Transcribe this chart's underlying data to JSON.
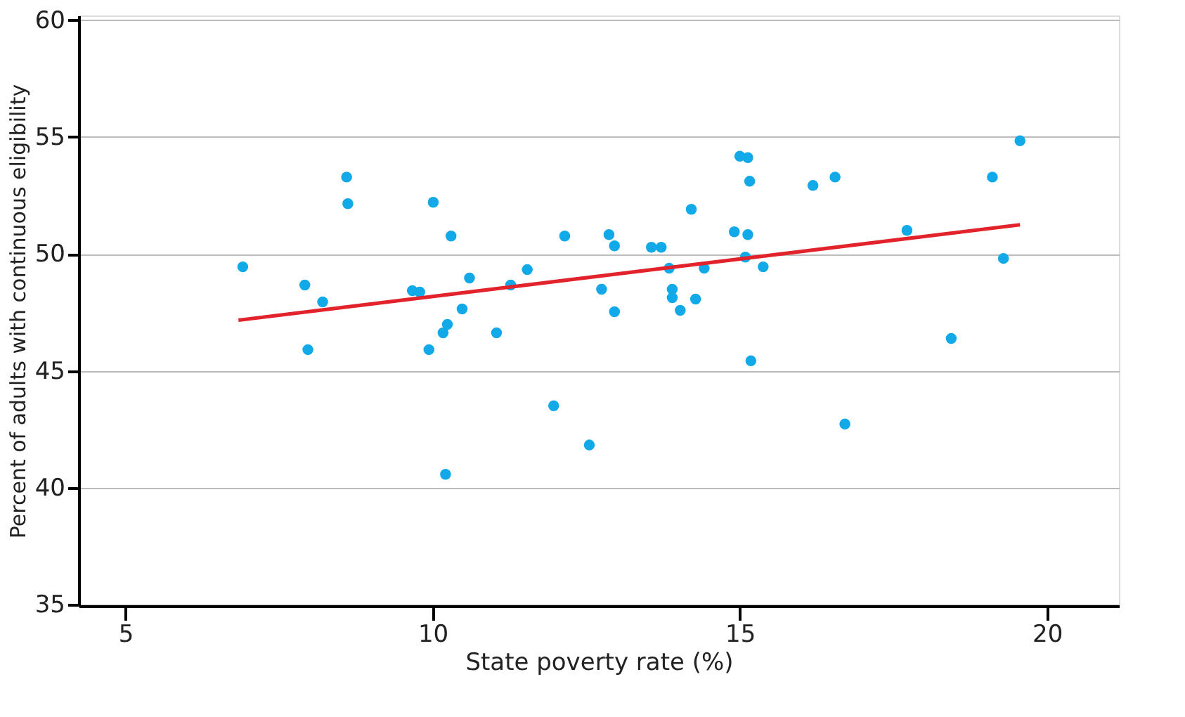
{
  "chart_data": {
    "type": "scatter",
    "xlabel": "State poverty rate (%)",
    "ylabel": "Percent of adults with continuous eligibility",
    "xlim": [
      4.24,
      21.17
    ],
    "xticks": [
      5,
      10,
      15,
      20
    ],
    "ylim": [
      34.95,
      60.2
    ],
    "yticks": [
      35,
      40,
      45,
      50,
      55,
      60
    ],
    "grid": "y",
    "marker": "circle",
    "series": [
      {
        "color": "#12a9e8",
        "x": [
          6.91,
          7.92,
          7.97,
          8.21,
          8.6,
          8.62,
          9.67,
          9.79,
          9.94,
          10.01,
          10.17,
          10.24,
          10.21,
          10.3,
          10.48,
          10.6,
          11.04,
          11.27,
          11.54,
          11.97,
          12.15,
          12.55,
          12.75,
          12.87,
          12.96,
          12.96,
          13.56,
          13.72,
          13.85,
          13.9,
          13.9,
          14.03,
          14.21,
          14.28,
          14.42,
          14.91,
          15.0,
          15.13,
          15.09,
          15.16,
          15.13,
          15.18,
          15.38,
          16.19,
          16.55,
          16.71,
          17.72,
          18.44,
          19.11,
          19.29,
          19.56
        ],
        "values": [
          49.45,
          48.67,
          45.91,
          47.95,
          53.29,
          52.15,
          48.43,
          48.37,
          45.91,
          52.21,
          46.63,
          46.99,
          40.58,
          50.77,
          47.65,
          48.97,
          46.63,
          48.67,
          49.33,
          43.51,
          50.77,
          41.83,
          48.49,
          50.83,
          50.35,
          47.53,
          50.29,
          50.29,
          49.39,
          48.49,
          48.13,
          47.59,
          51.91,
          48.07,
          49.39,
          50.95,
          54.18,
          54.12,
          49.87,
          53.11,
          50.83,
          45.43,
          49.45,
          52.93,
          53.29,
          42.73,
          51.01,
          46.39,
          53.29,
          49.81,
          54.84
        ]
      },
      {
        "type": "line",
        "color": "#e3232b",
        "line_style": "solid",
        "marker": "none",
        "x": [
          6.84,
          19.56
        ],
        "values": [
          47.17,
          51.25
        ]
      }
    ]
  }
}
